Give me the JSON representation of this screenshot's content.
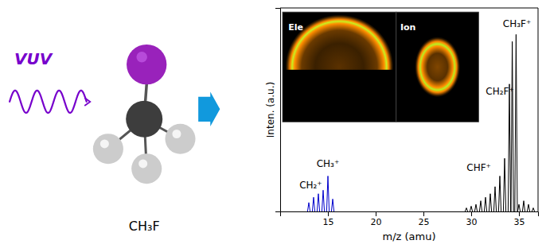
{
  "chart_data": {
    "type": "line",
    "xlabel": "m/z (amu)",
    "ylabel": "Inten. (a.u.)",
    "series": [
      {
        "color": "#000000",
        "x": [
          29.5,
          30.0,
          30.5,
          31.0,
          31.5,
          32.0,
          32.5,
          33.0,
          33.5,
          34.0,
          34.3,
          34.7,
          35.0,
          35.5,
          36.0,
          36.5
        ],
        "values": [
          0.02,
          0.03,
          0.04,
          0.06,
          0.08,
          0.1,
          0.14,
          0.2,
          0.3,
          0.72,
          0.96,
          1.0,
          0.04,
          0.06,
          0.04,
          0.02
        ]
      },
      {
        "color": "#0000cc",
        "x": [
          13.0,
          13.5,
          14.0,
          14.5,
          15.0,
          15.5
        ],
        "values": [
          0.05,
          0.08,
          0.1,
          0.12,
          0.2,
          0.07
        ]
      }
    ],
    "annotations": [
      {
        "text": "CH₃⁺",
        "x": 15.0,
        "y": 0.24
      },
      {
        "text": "CH₂⁺",
        "x": 13.2,
        "y": 0.12
      },
      {
        "text": "CHF⁺",
        "x": 30.8,
        "y": 0.22
      },
      {
        "text": "CH₂F⁺",
        "x": 33.0,
        "y": 0.65
      },
      {
        "text": "CH₃F⁺",
        "x": 34.8,
        "y": 1.03
      }
    ],
    "illustration_labels": [
      "VUV",
      "CH₃F"
    ],
    "inset_labels": [
      "Ele",
      "Ion"
    ],
    "xlim": [
      10,
      37
    ],
    "ylim": [
      0,
      1.15
    ],
    "xticks": [
      15,
      20,
      25,
      30,
      35
    ],
    "yticks": [],
    "tick_labels": "x",
    "grid": false
  }
}
